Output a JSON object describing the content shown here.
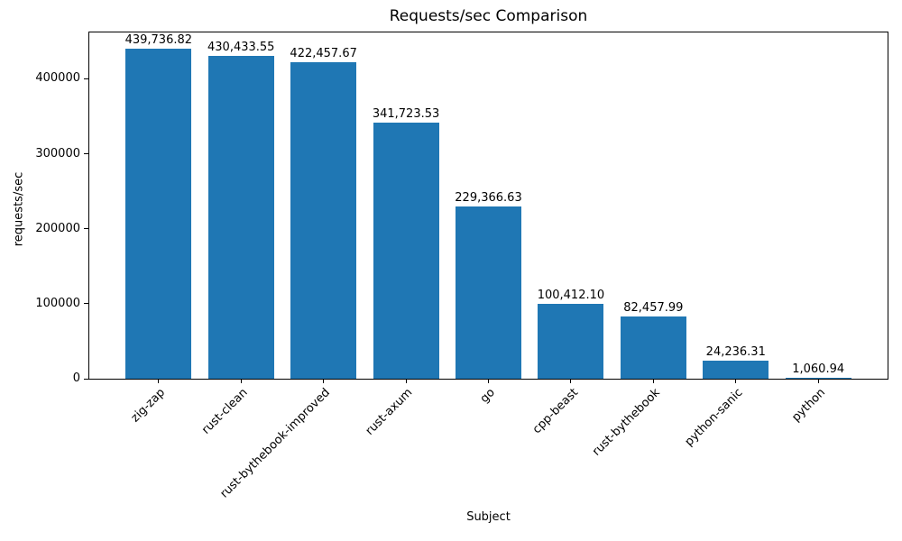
{
  "chart_data": {
    "type": "bar",
    "title": "Requests/sec Comparison",
    "xlabel": "Subject",
    "ylabel": "requests/sec",
    "categories": [
      "zig-zap",
      "rust-clean",
      "rust-bythebook-improved",
      "rust-axum",
      "go",
      "cpp-beast",
      "rust-bythebook",
      "python-sanic",
      "python"
    ],
    "values": [
      439736.82,
      430433.55,
      422457.67,
      341723.53,
      229366.63,
      100412.1,
      82457.99,
      24236.31,
      1060.94
    ],
    "value_labels": [
      "439,736.82",
      "430,433.55",
      "422,457.67",
      "341,723.53",
      "229,366.63",
      "100,412.10",
      "82,457.99",
      "24,236.31",
      "1,060.94"
    ],
    "yticks": [
      0,
      100000,
      200000,
      300000,
      400000
    ],
    "ytick_labels": [
      "0",
      "100000",
      "200000",
      "300000",
      "400000"
    ],
    "ylim": [
      0,
      461724
    ],
    "bar_color": "#1f77b4",
    "grid": false,
    "legend": "none",
    "xtick_rotation_deg": 45
  }
}
